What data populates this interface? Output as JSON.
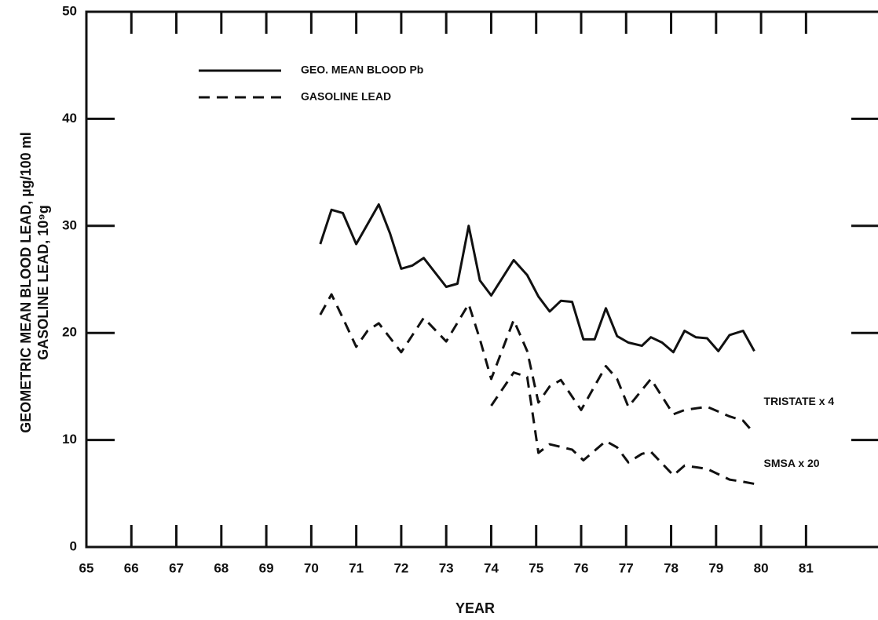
{
  "chart_data": {
    "type": "line",
    "x_label": "YEAR",
    "y_label": [
      "GEOMETRIC MEAN BLOOD LEAD, µg/100 ml",
      "GASOLINE LEAD, 10⁹g"
    ],
    "xlim": [
      65,
      82.6
    ],
    "ylim": [
      0,
      50
    ],
    "xticks": [
      65,
      66,
      67,
      68,
      69,
      70,
      71,
      72,
      73,
      74,
      75,
      76,
      77,
      78,
      79,
      80,
      81
    ],
    "yticks": [
      0,
      10,
      20,
      30,
      40,
      50
    ],
    "legend_extra": {
      "label": "GASOLINE LEAD",
      "dashed": true
    },
    "series": [
      {
        "name": "GEO. MEAN BLOOD Pb",
        "color": "#111111",
        "dashed": false,
        "in_legend": true,
        "x": [
          70.2,
          70.45,
          70.7,
          71.0,
          71.5,
          71.75,
          72.0,
          72.25,
          72.5,
          73.0,
          73.25,
          73.5,
          73.75,
          74.0,
          74.5,
          74.8,
          75.05,
          75.3,
          75.55,
          75.8,
          76.05,
          76.3,
          76.55,
          76.8,
          77.05,
          77.35,
          77.55,
          77.8,
          78.05,
          78.3,
          78.55,
          78.8,
          79.05,
          79.3,
          79.6,
          79.85
        ],
        "values": [
          28.3,
          31.5,
          31.2,
          28.3,
          32.0,
          29.3,
          26.0,
          26.3,
          27.0,
          24.3,
          24.6,
          30.0,
          24.9,
          23.5,
          26.8,
          25.4,
          23.4,
          22.0,
          23.0,
          22.9,
          19.4,
          19.4,
          22.3,
          19.7,
          19.1,
          18.8,
          19.6,
          19.1,
          18.2,
          20.2,
          19.6,
          19.5,
          18.3,
          19.8,
          20.2,
          18.3
        ]
      },
      {
        "name": "TRISTATE x 4",
        "color": "#111111",
        "dashed": true,
        "in_legend": false,
        "x": [
          70.2,
          70.45,
          70.7,
          71.0,
          71.25,
          71.5,
          72.0,
          72.5,
          73.0,
          73.5,
          73.75,
          74.0,
          74.5,
          74.8,
          75.05,
          75.3,
          75.55,
          76.0,
          76.55,
          76.8,
          77.05,
          77.55,
          78.05,
          78.3,
          78.8,
          79.3,
          79.6,
          79.85
        ],
        "values": [
          21.7,
          23.6,
          21.4,
          18.7,
          20.2,
          20.9,
          18.2,
          21.4,
          19.2,
          22.7,
          19.4,
          15.7,
          21.2,
          18.3,
          13.5,
          15.0,
          15.6,
          12.8,
          16.9,
          15.7,
          13.1,
          15.7,
          12.4,
          12.8,
          13.1,
          12.2,
          11.8,
          10.6
        ]
      },
      {
        "name": "SMSA x 20",
        "color": "#111111",
        "dashed": true,
        "in_legend": false,
        "x": [
          74.0,
          74.5,
          74.8,
          75.05,
          75.3,
          75.8,
          76.05,
          76.3,
          76.55,
          76.8,
          77.05,
          77.35,
          77.55,
          78.05,
          78.3,
          78.8,
          79.3,
          79.6,
          79.85
        ],
        "values": [
          13.2,
          16.3,
          15.9,
          8.8,
          9.6,
          9.1,
          8.1,
          9.0,
          9.9,
          9.3,
          7.9,
          8.7,
          8.9,
          6.7,
          7.6,
          7.3,
          6.3,
          6.1,
          5.9
        ]
      }
    ]
  }
}
